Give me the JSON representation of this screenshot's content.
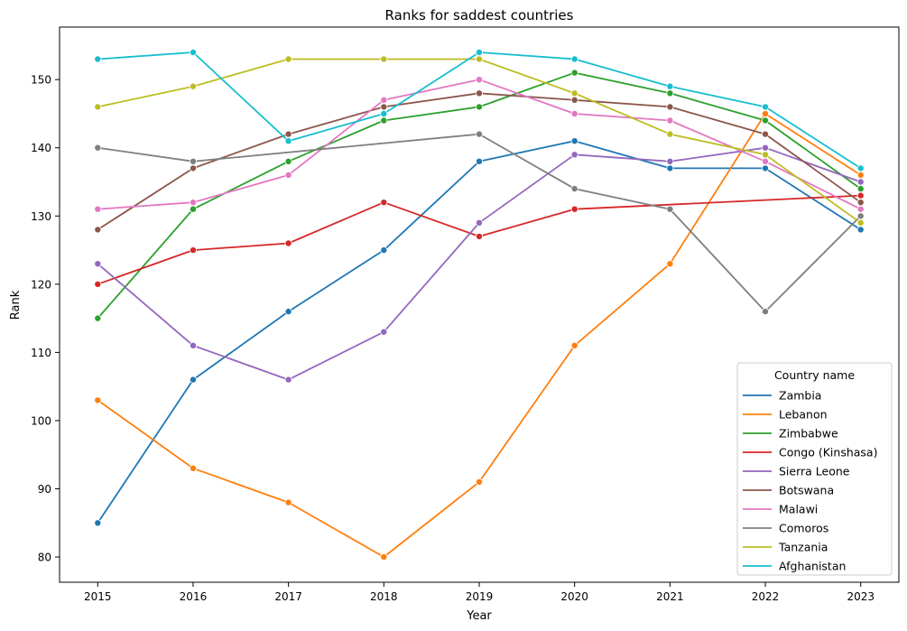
{
  "chart_data": {
    "type": "line",
    "title": "Ranks for saddest countries",
    "xlabel": "Year",
    "ylabel": "Rank",
    "x": [
      2015,
      2016,
      2017,
      2018,
      2019,
      2020,
      2021,
      2022,
      2023
    ],
    "xlim": [
      2014.6,
      2023.4
    ],
    "ylim": [
      76.3,
      157.7
    ],
    "yticks": [
      80,
      90,
      100,
      110,
      120,
      130,
      140,
      150
    ],
    "grid": false,
    "legend": {
      "title": "Country name",
      "placement": "lower-right"
    },
    "series": [
      {
        "name": "Zambia",
        "color": "#1f77b4",
        "points": [
          [
            2015,
            85
          ],
          [
            2016,
            106
          ],
          [
            2017,
            116
          ],
          [
            2018,
            125
          ],
          [
            2019,
            138
          ],
          [
            2020,
            141
          ],
          [
            2021,
            137
          ],
          [
            2022,
            137
          ],
          [
            2023,
            128
          ]
        ]
      },
      {
        "name": "Lebanon",
        "color": "#ff7f0e",
        "points": [
          [
            2015,
            103
          ],
          [
            2016,
            93
          ],
          [
            2017,
            88
          ],
          [
            2018,
            80
          ],
          [
            2019,
            91
          ],
          [
            2020,
            111
          ],
          [
            2021,
            123
          ],
          [
            2022,
            145
          ],
          [
            2023,
            136
          ]
        ]
      },
      {
        "name": "Zimbabwe",
        "color": "#2ca02c",
        "points": [
          [
            2015,
            115
          ],
          [
            2016,
            131
          ],
          [
            2017,
            138
          ],
          [
            2018,
            144
          ],
          [
            2019,
            146
          ],
          [
            2020,
            151
          ],
          [
            2021,
            148
          ],
          [
            2022,
            144
          ],
          [
            2023,
            134
          ]
        ]
      },
      {
        "name": "Congo (Kinshasa)",
        "color": "#d62728",
        "points": [
          [
            2015,
            120
          ],
          [
            2016,
            125
          ],
          [
            2017,
            126
          ],
          [
            2018,
            132
          ],
          [
            2019,
            127
          ],
          [
            2020,
            131
          ],
          [
            2023,
            133
          ]
        ]
      },
      {
        "name": "Sierra Leone",
        "color": "#9467bd",
        "points": [
          [
            2015,
            123
          ],
          [
            2016,
            111
          ],
          [
            2017,
            106
          ],
          [
            2018,
            113
          ],
          [
            2019,
            129
          ],
          [
            2020,
            139
          ],
          [
            2021,
            138
          ],
          [
            2022,
            140
          ],
          [
            2023,
            135
          ]
        ]
      },
      {
        "name": "Botswana",
        "color": "#8c564b",
        "points": [
          [
            2015,
            128
          ],
          [
            2016,
            137
          ],
          [
            2017,
            142
          ],
          [
            2018,
            146
          ],
          [
            2019,
            148
          ],
          [
            2020,
            147
          ],
          [
            2021,
            146
          ],
          [
            2022,
            142
          ],
          [
            2023,
            132
          ]
        ]
      },
      {
        "name": "Malawi",
        "color": "#e377c2",
        "points": [
          [
            2015,
            131
          ],
          [
            2016,
            132
          ],
          [
            2017,
            136
          ],
          [
            2018,
            147
          ],
          [
            2019,
            150
          ],
          [
            2020,
            145
          ],
          [
            2021,
            144
          ],
          [
            2022,
            138
          ],
          [
            2023,
            131
          ]
        ]
      },
      {
        "name": "Comoros",
        "color": "#7f7f7f",
        "points": [
          [
            2015,
            140
          ],
          [
            2016,
            138
          ],
          [
            2019,
            142
          ],
          [
            2020,
            134
          ],
          [
            2021,
            131
          ],
          [
            2022,
            116
          ],
          [
            2023,
            130
          ]
        ]
      },
      {
        "name": "Tanzania",
        "color": "#bcbd22",
        "points": [
          [
            2015,
            146
          ],
          [
            2016,
            149
          ],
          [
            2017,
            153
          ],
          [
            2018,
            153
          ],
          [
            2019,
            153
          ],
          [
            2020,
            148
          ],
          [
            2021,
            142
          ],
          [
            2022,
            139
          ],
          [
            2023,
            129
          ]
        ]
      },
      {
        "name": "Afghanistan",
        "color": "#17becf",
        "points": [
          [
            2015,
            153
          ],
          [
            2016,
            154
          ],
          [
            2017,
            141
          ],
          [
            2018,
            145
          ],
          [
            2019,
            154
          ],
          [
            2020,
            153
          ],
          [
            2021,
            149
          ],
          [
            2022,
            146
          ],
          [
            2023,
            137
          ]
        ]
      }
    ]
  }
}
